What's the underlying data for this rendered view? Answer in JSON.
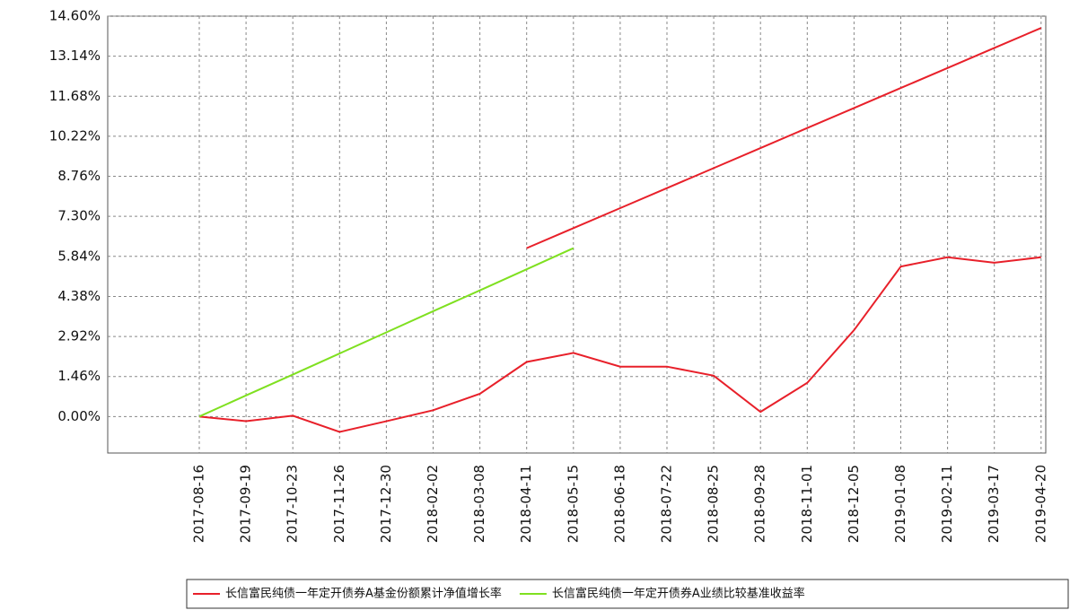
{
  "chart_data": {
    "type": "line",
    "categories": [
      "2017-08-16",
      "2017-09-19",
      "2017-10-23",
      "2017-11-26",
      "2017-12-30",
      "2018-02-02",
      "2018-03-08",
      "2018-04-11",
      "2018-05-15",
      "2018-06-18",
      "2018-07-22",
      "2018-08-25",
      "2018-09-28",
      "2018-11-01",
      "2018-12-05",
      "2019-01-08",
      "2019-02-11",
      "2019-03-17",
      "2019-04-20"
    ],
    "series": [
      {
        "name": "长信富民纯债一年定开债券A基金份额累计净值增长率",
        "color": "#e8202a",
        "values": [
          0,
          -0.17,
          0.03,
          -0.56,
          -0.17,
          0.23,
          0.83,
          1.99,
          2.32,
          1.82,
          1.82,
          1.49,
          0.17,
          1.23,
          3.15,
          5.47,
          5.81,
          5.61,
          5.81
        ]
      },
      {
        "name": "长信富民纯债一年定开债券A业绩比较基准收益率",
        "color": "#7fe020",
        "values": [
          0,
          0.77,
          1.53,
          2.3,
          3.07,
          3.84,
          4.6,
          5.37,
          6.14,
          null,
          null,
          null,
          null,
          null,
          null,
          null,
          null,
          null,
          null
        ]
      },
      {
        "color": "#e8202a",
        "values": [
          null,
          null,
          null,
          null,
          null,
          null,
          null,
          6.14,
          6.87,
          7.6,
          8.33,
          9.06,
          9.79,
          10.52,
          11.25,
          11.98,
          12.71,
          13.44,
          14.17
        ]
      }
    ],
    "ylim": [
      -1.33,
      14.6
    ],
    "yticks": [
      {
        "value": 0,
        "label": "0.00%"
      },
      {
        "value": 1.46,
        "label": "1.46%"
      },
      {
        "value": 2.92,
        "label": "2.92%"
      },
      {
        "value": 4.38,
        "label": "4.38%"
      },
      {
        "value": 5.84,
        "label": "5.84%"
      },
      {
        "value": 7.3,
        "label": "7.30%"
      },
      {
        "value": 8.76,
        "label": "8.76%"
      },
      {
        "value": 10.22,
        "label": "10.22%"
      },
      {
        "value": 11.68,
        "label": "11.68%"
      },
      {
        "value": 13.14,
        "label": "13.14%"
      },
      {
        "value": 14.6,
        "label": "14.60%"
      }
    ],
    "grid": true
  }
}
